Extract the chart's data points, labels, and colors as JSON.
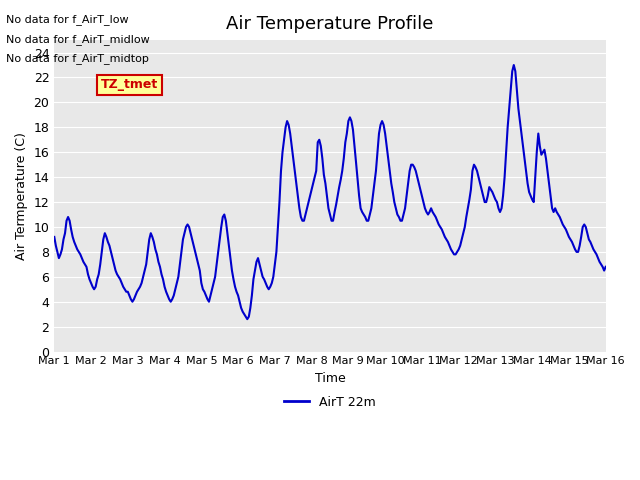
{
  "title": "Air Temperature Profile",
  "xlabel": "Time",
  "ylabel": "Air Termperature (C)",
  "xlim": [
    0,
    15
  ],
  "ylim": [
    0,
    25
  ],
  "yticks": [
    0,
    2,
    4,
    6,
    8,
    10,
    12,
    14,
    16,
    18,
    20,
    22,
    24
  ],
  "xtick_labels": [
    "Mar 1",
    "Mar 2",
    "Mar 3",
    "Mar 4",
    "Mar 5",
    "Mar 6",
    "Mar 7",
    "Mar 8",
    "Mar 9",
    "Mar 10",
    "Mar 11",
    "Mar 12",
    "Mar 13",
    "Mar 14",
    "Mar 15",
    "Mar 16"
  ],
  "xtick_positions": [
    0,
    1,
    2,
    3,
    4,
    5,
    6,
    7,
    8,
    9,
    10,
    11,
    12,
    13,
    14,
    15
  ],
  "line_color": "#0000cc",
  "line_width": 1.5,
  "legend_label": "AirT 22m",
  "legend_line_color": "#0000cc",
  "bg_color": "#e8e8e8",
  "annotations": [
    "No data for f_AirT_low",
    "No data for f_AirT_midlow",
    "No data for f_AirT_midtop"
  ],
  "annotation_box_text": "TZ_tmet",
  "annotation_box_color": "#cc0000",
  "annotation_box_bg": "#ffff99",
  "x": [
    0.0,
    0.042,
    0.083,
    0.125,
    0.167,
    0.208,
    0.25,
    0.292,
    0.333,
    0.375,
    0.417,
    0.458,
    0.5,
    0.542,
    0.583,
    0.625,
    0.667,
    0.708,
    0.75,
    0.792,
    0.833,
    0.875,
    0.917,
    0.958,
    1.0,
    1.042,
    1.083,
    1.125,
    1.167,
    1.208,
    1.25,
    1.292,
    1.333,
    1.375,
    1.417,
    1.458,
    1.5,
    1.542,
    1.583,
    1.625,
    1.667,
    1.708,
    1.75,
    1.792,
    1.833,
    1.875,
    1.917,
    1.958,
    2.0,
    2.042,
    2.083,
    2.125,
    2.167,
    2.208,
    2.25,
    2.292,
    2.333,
    2.375,
    2.417,
    2.458,
    2.5,
    2.542,
    2.583,
    2.625,
    2.667,
    2.708,
    2.75,
    2.792,
    2.833,
    2.875,
    2.917,
    2.958,
    3.0,
    3.042,
    3.083,
    3.125,
    3.167,
    3.208,
    3.25,
    3.292,
    3.333,
    3.375,
    3.417,
    3.458,
    3.5,
    3.542,
    3.583,
    3.625,
    3.667,
    3.708,
    3.75,
    3.792,
    3.833,
    3.875,
    3.917,
    3.958,
    4.0,
    4.042,
    4.083,
    4.125,
    4.167,
    4.208,
    4.25,
    4.292,
    4.333,
    4.375,
    4.417,
    4.458,
    4.5,
    4.542,
    4.583,
    4.625,
    4.667,
    4.708,
    4.75,
    4.792,
    4.833,
    4.875,
    4.917,
    4.958,
    5.0,
    5.042,
    5.083,
    5.125,
    5.167,
    5.208,
    5.25,
    5.292,
    5.333,
    5.375,
    5.417,
    5.458,
    5.5,
    5.542,
    5.583,
    5.625,
    5.667,
    5.708,
    5.75,
    5.792,
    5.833,
    5.875,
    5.917,
    5.958,
    6.0,
    6.042,
    6.083,
    6.125,
    6.167,
    6.208,
    6.25,
    6.292,
    6.333,
    6.375,
    6.417,
    6.458,
    6.5,
    6.542,
    6.583,
    6.625,
    6.667,
    6.708,
    6.75,
    6.792,
    6.833,
    6.875,
    6.917,
    6.958,
    7.0,
    7.042,
    7.083,
    7.125,
    7.167,
    7.208,
    7.25,
    7.292,
    7.333,
    7.375,
    7.417,
    7.458,
    7.5,
    7.542,
    7.583,
    7.625,
    7.667,
    7.708,
    7.75,
    7.792,
    7.833,
    7.875,
    7.917,
    7.958,
    8.0,
    8.042,
    8.083,
    8.125,
    8.167,
    8.208,
    8.25,
    8.292,
    8.333,
    8.375,
    8.417,
    8.458,
    8.5,
    8.542,
    8.583,
    8.625,
    8.667,
    8.708,
    8.75,
    8.792,
    8.833,
    8.875,
    8.917,
    8.958,
    9.0,
    9.042,
    9.083,
    9.125,
    9.167,
    9.208,
    9.25,
    9.292,
    9.333,
    9.375,
    9.417,
    9.458,
    9.5,
    9.542,
    9.583,
    9.625,
    9.667,
    9.708,
    9.75,
    9.792,
    9.833,
    9.875,
    9.917,
    9.958,
    10.0,
    10.042,
    10.083,
    10.125,
    10.167,
    10.208,
    10.25,
    10.292,
    10.333,
    10.375,
    10.417,
    10.458,
    10.5,
    10.542,
    10.583,
    10.625,
    10.667,
    10.708,
    10.75,
    10.792,
    10.833,
    10.875,
    10.917,
    10.958,
    11.0,
    11.042,
    11.083,
    11.125,
    11.167,
    11.208,
    11.25,
    11.292,
    11.333,
    11.375,
    11.417,
    11.458,
    11.5,
    11.542,
    11.583,
    11.625,
    11.667,
    11.708,
    11.75,
    11.792,
    11.833,
    11.875,
    11.917,
    11.958,
    12.0,
    12.042,
    12.083,
    12.125,
    12.167,
    12.208,
    12.25,
    12.292,
    12.333,
    12.375,
    12.417,
    12.458,
    12.5,
    12.542,
    12.583,
    12.625,
    12.667,
    12.708,
    12.75,
    12.792,
    12.833,
    12.875,
    12.917,
    12.958,
    13.0,
    13.042,
    13.083,
    13.125,
    13.167,
    13.208,
    13.25,
    13.292,
    13.333,
    13.375,
    13.417,
    13.458,
    13.5,
    13.542,
    13.583,
    13.625,
    13.667,
    13.708,
    13.75,
    13.792,
    13.833,
    13.875,
    13.917,
    13.958,
    14.0,
    14.042,
    14.083,
    14.125,
    14.167,
    14.208,
    14.25,
    14.292,
    14.333,
    14.375,
    14.417,
    14.458,
    14.5,
    14.542,
    14.583,
    14.625,
    14.667,
    14.708,
    14.75,
    14.792,
    14.833,
    14.875,
    14.917,
    14.958,
    15.0
  ],
  "y": [
    9.2,
    8.5,
    8.0,
    7.5,
    7.8,
    8.2,
    9.0,
    9.5,
    10.5,
    10.8,
    10.5,
    9.8,
    9.2,
    8.8,
    8.5,
    8.2,
    8.0,
    7.8,
    7.5,
    7.2,
    7.0,
    6.8,
    6.2,
    5.8,
    5.5,
    5.2,
    5.0,
    5.2,
    5.8,
    6.2,
    7.0,
    8.0,
    9.0,
    9.5,
    9.2,
    8.8,
    8.5,
    8.0,
    7.5,
    7.0,
    6.5,
    6.2,
    6.0,
    5.8,
    5.5,
    5.2,
    5.0,
    4.8,
    4.8,
    4.5,
    4.2,
    4.0,
    4.2,
    4.5,
    4.8,
    5.0,
    5.2,
    5.5,
    6.0,
    6.5,
    7.0,
    8.0,
    9.0,
    9.5,
    9.2,
    8.8,
    8.2,
    7.8,
    7.2,
    6.8,
    6.2,
    5.8,
    5.2,
    4.8,
    4.5,
    4.2,
    4.0,
    4.2,
    4.5,
    5.0,
    5.5,
    6.0,
    7.0,
    8.0,
    9.0,
    9.5,
    10.0,
    10.2,
    10.0,
    9.5,
    9.0,
    8.5,
    8.0,
    7.5,
    7.0,
    6.5,
    5.5,
    5.0,
    4.8,
    4.5,
    4.2,
    4.0,
    4.5,
    5.0,
    5.5,
    6.0,
    7.0,
    8.0,
    9.0,
    10.0,
    10.8,
    11.0,
    10.5,
    9.5,
    8.5,
    7.5,
    6.5,
    5.8,
    5.2,
    4.8,
    4.5,
    4.0,
    3.5,
    3.2,
    3.0,
    2.8,
    2.6,
    2.8,
    3.5,
    4.5,
    5.8,
    6.5,
    7.2,
    7.5,
    7.0,
    6.5,
    6.0,
    5.8,
    5.5,
    5.2,
    5.0,
    5.2,
    5.5,
    6.0,
    7.0,
    8.0,
    10.0,
    12.0,
    14.5,
    16.0,
    17.0,
    18.0,
    18.5,
    18.2,
    17.5,
    16.5,
    15.5,
    14.5,
    13.5,
    12.5,
    11.5,
    10.8,
    10.5,
    10.5,
    11.0,
    11.5,
    12.0,
    12.5,
    13.0,
    13.5,
    14.0,
    14.5,
    16.8,
    17.0,
    16.5,
    15.5,
    14.2,
    13.5,
    12.5,
    11.5,
    11.0,
    10.5,
    10.5,
    11.2,
    11.8,
    12.5,
    13.2,
    13.8,
    14.5,
    15.5,
    16.8,
    17.5,
    18.5,
    18.8,
    18.5,
    17.8,
    16.5,
    15.2,
    13.8,
    12.5,
    11.5,
    11.2,
    11.0,
    10.8,
    10.5,
    10.5,
    11.0,
    11.5,
    12.5,
    13.5,
    14.5,
    16.0,
    17.5,
    18.2,
    18.5,
    18.2,
    17.5,
    16.5,
    15.5,
    14.5,
    13.5,
    12.8,
    12.0,
    11.5,
    11.0,
    10.8,
    10.5,
    10.5,
    11.0,
    11.5,
    12.5,
    13.5,
    14.5,
    15.0,
    15.0,
    14.8,
    14.5,
    14.0,
    13.5,
    13.0,
    12.5,
    12.0,
    11.5,
    11.2,
    11.0,
    11.2,
    11.5,
    11.2,
    11.0,
    10.8,
    10.5,
    10.2,
    10.0,
    9.8,
    9.5,
    9.2,
    9.0,
    8.8,
    8.5,
    8.2,
    8.0,
    7.8,
    7.8,
    8.0,
    8.2,
    8.5,
    9.0,
    9.5,
    10.0,
    10.8,
    11.5,
    12.2,
    13.0,
    14.5,
    15.0,
    14.8,
    14.5,
    14.0,
    13.5,
    13.0,
    12.5,
    12.0,
    12.0,
    12.5,
    13.2,
    13.0,
    12.8,
    12.5,
    12.2,
    12.0,
    11.5,
    11.2,
    11.5,
    12.5,
    14.0,
    16.0,
    18.0,
    19.5,
    21.0,
    22.5,
    23.0,
    22.5,
    21.0,
    19.5,
    18.5,
    17.5,
    16.5,
    15.5,
    14.5,
    13.5,
    12.8,
    12.5,
    12.2,
    12.0,
    14.0,
    16.0,
    17.5,
    16.5,
    15.8,
    16.0,
    16.2,
    15.5,
    14.5,
    13.5,
    12.5,
    11.5,
    11.2,
    11.5,
    11.2,
    11.0,
    10.8,
    10.5,
    10.2,
    10.0,
    9.8,
    9.5,
    9.2,
    9.0,
    8.8,
    8.5,
    8.2,
    8.0,
    8.0,
    8.5,
    9.2,
    10.0,
    10.2,
    10.0,
    9.5,
    9.0,
    8.8,
    8.5,
    8.2,
    8.0,
    7.8,
    7.5,
    7.2,
    7.0,
    6.8,
    6.5,
    6.8
  ]
}
